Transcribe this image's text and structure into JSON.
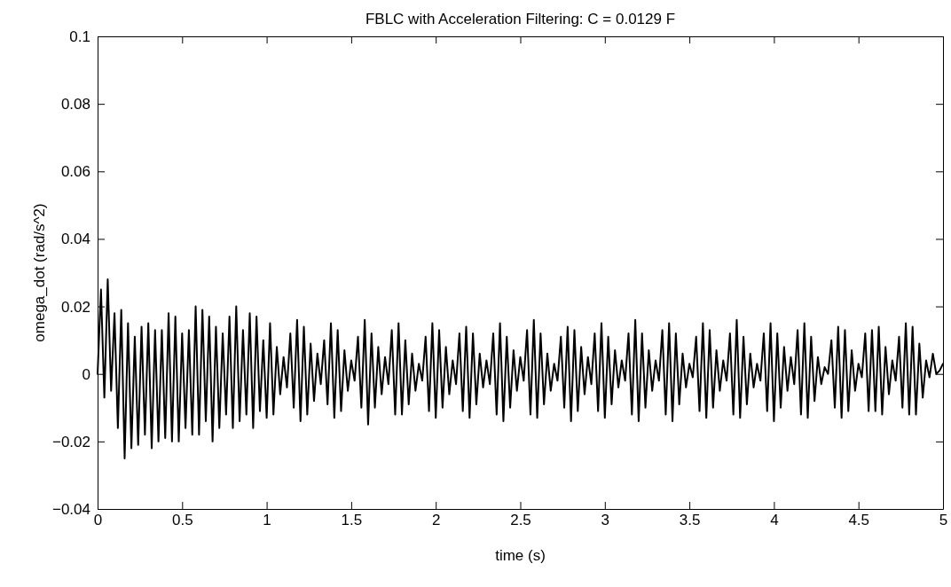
{
  "chart_data": {
    "type": "line",
    "title": "FBLC with Acceleration Filtering: C = 0.0129 F",
    "xlabel": "time (s)",
    "ylabel": "omega_dot (rad/s^2)",
    "xlim": [
      0,
      5
    ],
    "ylim": [
      -0.04,
      0.1
    ],
    "xticks": [
      0,
      0.5,
      1,
      1.5,
      2,
      2.5,
      3,
      3.5,
      4,
      4.5,
      5
    ],
    "yticks": [
      {
        "value": -0.04,
        "label": "−0.04"
      },
      {
        "value": -0.02,
        "label": "−0.02"
      },
      0,
      0.02,
      0.04,
      0.06,
      0.08,
      0.1
    ],
    "grid": false,
    "series": [
      {
        "color": "#000000",
        "x": [
          0,
          0.02,
          0.04,
          0.06,
          0.08,
          0.1,
          0.12,
          0.14,
          0.16,
          0.18,
          0.2,
          0.22,
          0.24,
          0.26,
          0.28,
          0.3,
          0.32,
          0.34,
          0.36,
          0.38,
          0.4,
          0.42,
          0.44,
          0.46,
          0.48,
          0.5,
          0.52,
          0.54,
          0.56,
          0.58,
          0.6,
          0.62,
          0.64,
          0.66,
          0.68,
          0.7,
          0.72,
          0.74,
          0.76,
          0.78,
          0.8,
          0.82,
          0.84,
          0.86,
          0.88,
          0.9,
          0.92,
          0.94,
          0.96,
          0.98,
          1,
          1.02,
          1.04,
          1.06,
          1.08,
          1.1,
          1.12,
          1.14,
          1.16,
          1.18,
          1.2,
          1.22,
          1.24,
          1.26,
          1.28,
          1.3,
          1.32,
          1.34,
          1.36,
          1.38,
          1.4,
          1.42,
          1.44,
          1.46,
          1.48,
          1.5,
          1.52,
          1.54,
          1.56,
          1.58,
          1.6,
          1.62,
          1.64,
          1.66,
          1.68,
          1.7,
          1.72,
          1.74,
          1.76,
          1.78,
          1.8,
          1.82,
          1.84,
          1.86,
          1.88,
          1.9,
          1.92,
          1.94,
          1.96,
          1.98,
          2,
          2.02,
          2.04,
          2.06,
          2.08,
          2.1,
          2.12,
          2.14,
          2.16,
          2.18,
          2.2,
          2.22,
          2.24,
          2.26,
          2.28,
          2.3,
          2.32,
          2.34,
          2.36,
          2.38,
          2.4,
          2.42,
          2.44,
          2.46,
          2.48,
          2.5,
          2.52,
          2.54,
          2.56,
          2.58,
          2.6,
          2.62,
          2.64,
          2.66,
          2.68,
          2.7,
          2.72,
          2.74,
          2.76,
          2.78,
          2.8,
          2.82,
          2.84,
          2.86,
          2.88,
          2.9,
          2.92,
          2.94,
          2.96,
          2.98,
          3,
          3.02,
          3.04,
          3.06,
          3.08,
          3.1,
          3.12,
          3.14,
          3.16,
          3.18,
          3.2,
          3.22,
          3.24,
          3.26,
          3.28,
          3.3,
          3.32,
          3.34,
          3.36,
          3.38,
          3.4,
          3.42,
          3.44,
          3.46,
          3.48,
          3.5,
          3.52,
          3.54,
          3.56,
          3.58,
          3.6,
          3.62,
          3.64,
          3.66,
          3.68,
          3.7,
          3.72,
          3.74,
          3.76,
          3.78,
          3.8,
          3.82,
          3.84,
          3.86,
          3.88,
          3.9,
          3.92,
          3.94,
          3.96,
          3.98,
          4,
          4.02,
          4.04,
          4.06,
          4.08,
          4.1,
          4.12,
          4.14,
          4.16,
          4.18,
          4.2,
          4.22,
          4.24,
          4.26,
          4.28,
          4.3,
          4.32,
          4.34,
          4.36,
          4.38,
          4.4,
          4.42,
          4.44,
          4.46,
          4.48,
          4.5,
          4.52,
          4.54,
          4.56,
          4.58,
          4.6,
          4.62,
          4.64,
          4.66,
          4.68,
          4.7,
          4.72,
          4.74,
          4.76,
          4.78,
          4.8,
          4.82,
          4.84,
          4.86,
          4.88,
          4.9,
          4.92,
          4.94,
          4.96,
          4.98,
          5
        ],
        "values": [
          0,
          0.025,
          -0.007,
          0.028,
          -0.005,
          0.018,
          -0.016,
          0.019,
          -0.025,
          0.015,
          -0.022,
          0.011,
          -0.021,
          0.014,
          -0.018,
          0.015,
          -0.022,
          0.013,
          -0.02,
          0.013,
          -0.019,
          0.018,
          -0.02,
          0.017,
          -0.02,
          0.012,
          -0.016,
          0.013,
          -0.018,
          0.02,
          -0.018,
          0.019,
          -0.014,
          0.017,
          -0.02,
          0.014,
          -0.016,
          0.012,
          -0.012,
          0.017,
          -0.016,
          0.02,
          -0.014,
          0.013,
          -0.012,
          0.018,
          -0.016,
          0.017,
          -0.011,
          0.01,
          -0.013,
          0.015,
          -0.012,
          0.008,
          -0.006,
          0.005,
          -0.004,
          0.012,
          -0.01,
          0.016,
          -0.014,
          0.014,
          -0.012,
          0.009,
          -0.008,
          0.006,
          -0.003,
          0.01,
          -0.009,
          0.015,
          -0.013,
          0.013,
          -0.011,
          0.007,
          -0.005,
          0.004,
          -0.002,
          0.011,
          -0.01,
          0.016,
          -0.015,
          0.012,
          -0.01,
          0.008,
          -0.006,
          0.005,
          -0.003,
          0.013,
          -0.012,
          0.015,
          -0.012,
          0.01,
          -0.009,
          0.006,
          -0.005,
          0.003,
          -0.002,
          0.011,
          -0.011,
          0.015,
          -0.013,
          0.013,
          -0.01,
          0.008,
          -0.006,
          0.004,
          -0.003,
          0.012,
          -0.011,
          0.014,
          -0.013,
          0.012,
          -0.009,
          0.006,
          -0.004,
          0.004,
          -0.003,
          0.012,
          -0.012,
          0.015,
          -0.014,
          0.011,
          -0.01,
          0.007,
          -0.005,
          0.005,
          -0.002,
          0.013,
          -0.012,
          0.016,
          -0.013,
          0.012,
          -0.009,
          0.006,
          -0.005,
          0.003,
          -0.002,
          0.011,
          -0.01,
          0.014,
          -0.014,
          0.013,
          -0.011,
          0.008,
          -0.006,
          0.005,
          -0.003,
          0.012,
          -0.011,
          0.015,
          -0.013,
          0.011,
          -0.009,
          0.007,
          -0.004,
          0.004,
          -0.002,
          0.012,
          -0.012,
          0.016,
          -0.014,
          0.012,
          -0.01,
          0.007,
          -0.005,
          0.004,
          -0.002,
          0.013,
          -0.012,
          0.015,
          -0.014,
          0.012,
          -0.009,
          0.006,
          -0.004,
          0.003,
          -0.001,
          0.011,
          -0.011,
          0.015,
          -0.013,
          0.013,
          -0.01,
          0.007,
          -0.005,
          0.004,
          -0.002,
          0.012,
          -0.012,
          0.016,
          -0.013,
          0.011,
          -0.009,
          0.006,
          -0.004,
          0.003,
          -0.002,
          0.012,
          -0.011,
          0.015,
          -0.014,
          0.012,
          -0.01,
          0.008,
          -0.005,
          0.005,
          -0.003,
          0.013,
          -0.012,
          0.015,
          -0.013,
          0.011,
          -0.008,
          0.005,
          -0.003,
          0.002,
          0,
          0.01,
          -0.01,
          0.014,
          -0.013,
          0.013,
          -0.011,
          0.007,
          -0.005,
          0.003,
          -0.001,
          0.012,
          -0.011,
          0.013,
          -0.011,
          0.014,
          -0.012,
          0.008,
          -0.006,
          0.004,
          -0.002,
          0.011,
          -0.01,
          0.015,
          -0.012,
          0.014,
          -0.012,
          0.009,
          -0.007,
          0.004,
          -0.001,
          0.006,
          0,
          0.001,
          0.003
        ]
      }
    ]
  }
}
